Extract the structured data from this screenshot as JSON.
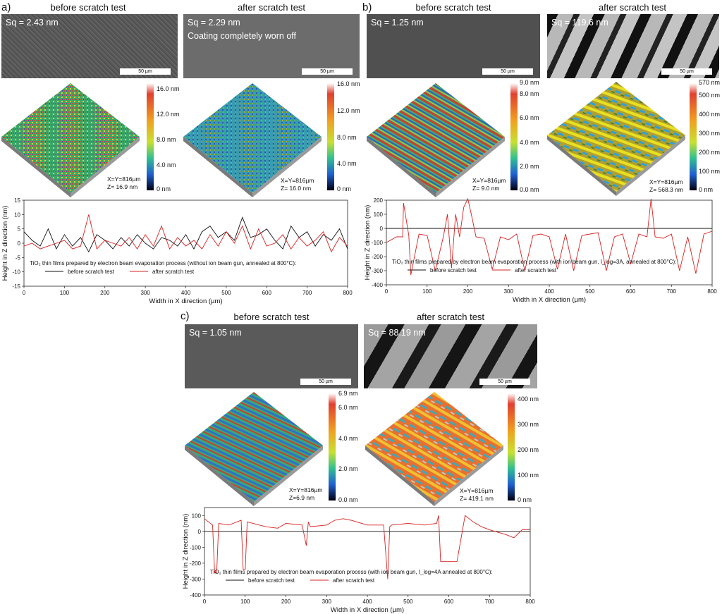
{
  "panels": [
    {
      "label": "a)",
      "before": {
        "title": "before scratch test",
        "sq": "Sq = 2.43 nm",
        "note": "",
        "scale_bar": "50 µm"
      },
      "after": {
        "title": "after scratch test",
        "sq": "Sq = 2.29 nm",
        "note": "Coating completely worn off",
        "scale_bar": "50 µm"
      },
      "afm_before": {
        "colorbar_ticks": [
          "16.0 nm",
          "12.0 nm",
          "8.0 nm",
          "4.0 nm",
          "0 nm"
        ],
        "dims": [
          "X=Y=816µm",
          "Z= 16.9 nm"
        ]
      },
      "afm_after": {
        "colorbar_ticks": [
          "16.0 nm",
          "12.0 nm",
          "8.0 nm",
          "4.0 nm",
          "0 nm"
        ],
        "dims": [
          "X=Y=816µm",
          "Z= 16.0 nm"
        ]
      }
    },
    {
      "label": "b)",
      "before": {
        "title": "before scratch test",
        "sq": "Sq = 1.25 nm",
        "note": "",
        "scale_bar": "50 µm"
      },
      "after": {
        "title": "after scratch test",
        "sq": "Sq = 119.6 nm",
        "note": "",
        "scale_bar": "50 µm"
      },
      "afm_before": {
        "colorbar_ticks": [
          "9.0 nm",
          "8.0 nm",
          "6.0 nm",
          "4.0 nm",
          "2.0 nm",
          "0.0 nm"
        ],
        "dims": [
          "X=Y=816µm",
          "Z= 9.0 nm"
        ]
      },
      "afm_after": {
        "colorbar_ticks": [
          "570 nm",
          "500 nm",
          "400 nm",
          "300 nm",
          "200 nm",
          "100 nm",
          "0 nm"
        ],
        "dims": [
          "X=Y=816µm",
          "Z= 568.3 nm"
        ]
      }
    },
    {
      "label": "c)",
      "before": {
        "title": "before scratch test",
        "sq": "Sq = 1.05 nm",
        "note": "",
        "scale_bar": "50 µm"
      },
      "after": {
        "title": "after scratch test",
        "sq": "Sq = 88.19 nm",
        "note": "",
        "scale_bar": "50 µm"
      },
      "afm_before": {
        "colorbar_ticks": [
          "6.9 nm",
          "6.0 nm",
          "4.0 nm",
          "2.0 nm",
          "0.0 nm"
        ],
        "dims": [
          "X=Y=816µm",
          "Z=6.9 nm"
        ]
      },
      "afm_after": {
        "colorbar_ticks": [
          "400 nm",
          "300 nm",
          "200 nm",
          "100 nm",
          "0 nm"
        ],
        "dims": [
          "X=Y=816µm",
          "Z= 419.1 nm"
        ]
      }
    }
  ],
  "chart_data": [
    {
      "type": "line",
      "panel": "a",
      "xlabel": "Width in X direction (µm)",
      "ylabel": "Height in Z direction (nm)",
      "xlim": [
        0,
        800
      ],
      "ylim": [
        -15,
        15
      ],
      "xticks": [
        0,
        100,
        200,
        300,
        400,
        500,
        600,
        700,
        800
      ],
      "yticks": [
        -15,
        -10,
        -5,
        0,
        5,
        10,
        15
      ],
      "caption": "TiO₂ thin films prepared by electron beam evaporation process (without ion beam gun, annealed at 800°C):",
      "series": [
        {
          "name": "before scratch test",
          "color": "#111111",
          "x": [
            0,
            20,
            40,
            60,
            80,
            100,
            120,
            140,
            160,
            180,
            200,
            220,
            240,
            260,
            280,
            300,
            320,
            340,
            360,
            380,
            400,
            420,
            440,
            460,
            480,
            500,
            520,
            540,
            560,
            580,
            600,
            620,
            640,
            660,
            680,
            700,
            720,
            740,
            760,
            780,
            800
          ],
          "y": [
            4,
            1,
            -1,
            5,
            -2,
            3,
            -1,
            2,
            -3,
            3,
            1,
            -2,
            2,
            -1,
            3,
            0,
            -2,
            2,
            1,
            -1,
            3,
            -2,
            4,
            6,
            2,
            4,
            1,
            9,
            2,
            3,
            5,
            1,
            -2,
            6,
            2,
            4,
            -1,
            3,
            1,
            5,
            -2
          ]
        },
        {
          "name": "after scratch test",
          "color": "#d92020",
          "x": [
            0,
            20,
            40,
            60,
            80,
            100,
            120,
            140,
            160,
            180,
            200,
            220,
            240,
            260,
            280,
            300,
            320,
            340,
            360,
            380,
            400,
            420,
            440,
            460,
            480,
            500,
            520,
            540,
            560,
            580,
            600,
            620,
            640,
            660,
            680,
            700,
            720,
            740,
            760,
            780,
            800
          ],
          "y": [
            -1,
            0,
            -2,
            -1,
            0,
            1,
            -2,
            -1,
            10,
            -2,
            1,
            0,
            -1,
            2,
            -2,
            3,
            -1,
            6,
            -2,
            2,
            -1,
            1,
            -2,
            3,
            -1,
            4,
            0,
            6,
            -2,
            5,
            -1,
            0,
            3,
            -2,
            2,
            -1,
            1,
            4,
            -3,
            2,
            -1
          ]
        }
      ]
    },
    {
      "type": "line",
      "panel": "b",
      "xlabel": "Width in X direction (µm)",
      "ylabel": "Height in Z direction (nm)",
      "xlim": [
        0,
        800
      ],
      "ylim": [
        -400,
        200
      ],
      "xticks": [
        0,
        100,
        200,
        300,
        400,
        500,
        600,
        700,
        800
      ],
      "yticks": [
        -400,
        -300,
        -200,
        -100,
        0,
        100,
        200
      ],
      "caption": "TiO₂ thin films prepared by electron beam evaporation process (with ion beam gun, I_log=3A, annealed at 800°C):",
      "series": [
        {
          "name": "before scratch test",
          "color": "#111111",
          "x": [
            0,
            100,
            200,
            300,
            400,
            500,
            600,
            700,
            800
          ],
          "y": [
            0,
            0,
            0,
            0,
            0,
            0,
            0,
            0,
            0
          ]
        },
        {
          "name": "after scratch test",
          "color": "#d92020",
          "x": [
            0,
            25,
            40,
            42,
            55,
            60,
            80,
            100,
            120,
            140,
            150,
            160,
            170,
            180,
            190,
            200,
            210,
            220,
            240,
            260,
            280,
            300,
            320,
            340,
            360,
            380,
            400,
            420,
            440,
            460,
            480,
            500,
            520,
            540,
            560,
            580,
            600,
            620,
            640,
            650,
            660,
            680,
            700,
            720,
            740,
            760,
            780,
            800
          ],
          "y": [
            -100,
            -60,
            -60,
            180,
            -50,
            -330,
            -40,
            -50,
            -300,
            -60,
            100,
            -280,
            100,
            -60,
            150,
            210,
            80,
            -60,
            -70,
            -290,
            -60,
            -80,
            -40,
            -300,
            -50,
            -40,
            -60,
            -290,
            -40,
            -300,
            -50,
            -40,
            -30,
            -300,
            -60,
            -40,
            -250,
            -40,
            -60,
            210,
            -60,
            -70,
            -40,
            -300,
            -60,
            -320,
            -40,
            -20
          ]
        }
      ]
    },
    {
      "type": "line",
      "panel": "c",
      "xlabel": "Width in X direction (µm)",
      "ylabel": "Height in Z direction (nm)",
      "xlim": [
        0,
        800
      ],
      "ylim": [
        -400,
        150
      ],
      "xticks": [
        0,
        100,
        200,
        300,
        400,
        500,
        600,
        700,
        800
      ],
      "yticks": [
        -400,
        -300,
        -200,
        -100,
        0,
        100
      ],
      "caption": "TiO₂ thin films prepared by electron beam evaporation process (with ion beam gun, I_log=4A annealed at 800°C):",
      "series": [
        {
          "name": "before scratch test",
          "color": "#111111",
          "x": [
            0,
            100,
            200,
            300,
            400,
            500,
            600,
            700,
            800
          ],
          "y": [
            0,
            0,
            0,
            0,
            0,
            0,
            0,
            0,
            0
          ]
        },
        {
          "name": "after scratch test",
          "color": "#d92020",
          "x": [
            0,
            20,
            25,
            30,
            35,
            60,
            90,
            95,
            100,
            105,
            150,
            180,
            200,
            240,
            250,
            255,
            260,
            300,
            320,
            340,
            360,
            400,
            440,
            450,
            455,
            460,
            500,
            540,
            570,
            575,
            580,
            585,
            620,
            640,
            660,
            680,
            700,
            740,
            760,
            780,
            800
          ],
          "y": [
            80,
            40,
            -260,
            -260,
            50,
            40,
            70,
            -240,
            -240,
            60,
            30,
            20,
            50,
            40,
            -90,
            60,
            30,
            40,
            70,
            80,
            70,
            40,
            40,
            -300,
            30,
            40,
            50,
            40,
            50,
            100,
            -190,
            -190,
            -190,
            100,
            60,
            30,
            10,
            -20,
            -40,
            10,
            10
          ]
        }
      ]
    }
  ]
}
